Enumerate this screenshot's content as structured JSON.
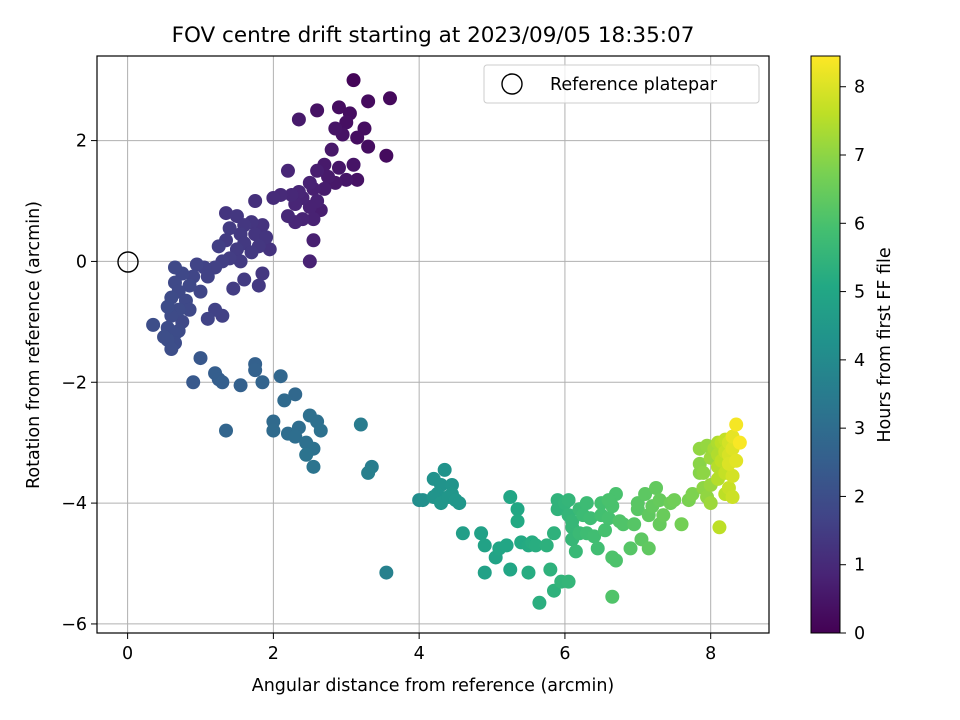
{
  "chart_data": {
    "type": "scatter",
    "title": "FOV centre drift starting at 2023/09/05 18:35:07",
    "xlabel": "Angular distance from reference (arcmin)",
    "ylabel": "Rotation from reference (arcmin)",
    "xlim": [
      -0.42,
      8.8
    ],
    "ylim": [
      -6.15,
      3.4
    ],
    "xticks": [
      0,
      2,
      4,
      6,
      8
    ],
    "yticks": [
      -6,
      -4,
      -2,
      0,
      2
    ],
    "xtick_labels": [
      "0",
      "2",
      "4",
      "6",
      "8"
    ],
    "ytick_labels": [
      "−6",
      "−4",
      "−2",
      "0",
      "2"
    ],
    "grid": true,
    "legend": {
      "position": "top-right",
      "label": "Reference platepar"
    },
    "reference_point": {
      "x": 0,
      "y": 0
    },
    "colorbar": {
      "label": "Hours from first FF file",
      "range": [
        0,
        8.45
      ],
      "ticks": [
        0,
        1,
        2,
        3,
        4,
        5,
        6,
        7,
        8
      ],
      "tick_labels": [
        "0",
        "1",
        "2",
        "3",
        "4",
        "5",
        "6",
        "7",
        "8"
      ],
      "colormap": "viridis"
    },
    "points": [
      [
        3.1,
        3.0,
        0.1
      ],
      [
        3.6,
        2.7,
        0.2
      ],
      [
        3.3,
        2.65,
        0.25
      ],
      [
        2.9,
        2.55,
        0.3
      ],
      [
        3.05,
        2.45,
        0.3
      ],
      [
        2.6,
        2.5,
        0.4
      ],
      [
        2.35,
        2.35,
        0.6
      ],
      [
        3.0,
        2.3,
        0.35
      ],
      [
        3.25,
        2.2,
        0.3
      ],
      [
        2.85,
        2.2,
        0.45
      ],
      [
        3.15,
        2.05,
        0.3
      ],
      [
        2.95,
        2.1,
        0.4
      ],
      [
        3.3,
        1.9,
        0.3
      ],
      [
        2.8,
        1.85,
        0.55
      ],
      [
        3.55,
        1.75,
        0.25
      ],
      [
        2.7,
        1.6,
        0.6
      ],
      [
        2.9,
        1.55,
        0.5
      ],
      [
        3.1,
        1.6,
        0.45
      ],
      [
        2.6,
        1.5,
        0.7
      ],
      [
        2.75,
        1.4,
        0.6
      ],
      [
        3.0,
        1.35,
        0.5
      ],
      [
        3.15,
        1.35,
        0.4
      ],
      [
        2.2,
        1.5,
        0.9
      ],
      [
        2.5,
        1.3,
        0.8
      ],
      [
        2.85,
        1.3,
        0.55
      ],
      [
        2.35,
        1.15,
        0.9
      ],
      [
        2.55,
        1.2,
        0.75
      ],
      [
        2.7,
        1.2,
        0.65
      ],
      [
        2.1,
        1.1,
        1.0
      ],
      [
        2.25,
        1.1,
        0.95
      ],
      [
        2.0,
        1.05,
        1.05
      ],
      [
        2.4,
        1.05,
        0.85
      ],
      [
        2.6,
        1.0,
        0.8
      ],
      [
        1.75,
        1.0,
        1.15
      ],
      [
        2.3,
        0.95,
        0.9
      ],
      [
        2.5,
        0.9,
        0.8
      ],
      [
        2.65,
        0.85,
        0.7
      ],
      [
        2.2,
        0.75,
        0.95
      ],
      [
        2.4,
        0.7,
        0.85
      ],
      [
        2.55,
        0.7,
        0.8
      ],
      [
        2.3,
        0.65,
        0.9
      ],
      [
        2.55,
        0.35,
        0.75
      ],
      [
        2.5,
        0.0,
        0.8
      ],
      [
        1.35,
        0.8,
        1.3
      ],
      [
        1.5,
        0.75,
        1.35
      ],
      [
        1.7,
        0.65,
        1.3
      ],
      [
        1.6,
        0.6,
        1.35
      ],
      [
        1.85,
        0.6,
        1.25
      ],
      [
        1.4,
        0.55,
        1.45
      ],
      [
        1.55,
        0.45,
        1.4
      ],
      [
        1.75,
        0.45,
        1.3
      ],
      [
        1.9,
        0.4,
        1.3
      ],
      [
        1.35,
        0.35,
        1.45
      ],
      [
        1.6,
        0.3,
        1.4
      ],
      [
        1.8,
        0.25,
        1.35
      ],
      [
        1.25,
        0.25,
        1.55
      ],
      [
        1.5,
        0.2,
        1.45
      ],
      [
        1.95,
        0.2,
        1.25
      ],
      [
        1.7,
        0.15,
        1.4
      ],
      [
        1.4,
        0.05,
        1.5
      ],
      [
        1.3,
        0.0,
        1.55
      ],
      [
        1.55,
        0.0,
        1.45
      ],
      [
        1.2,
        -0.1,
        1.6
      ],
      [
        1.05,
        -0.1,
        1.65
      ],
      [
        0.95,
        -0.05,
        1.7
      ],
      [
        1.85,
        -0.2,
        1.35
      ],
      [
        1.6,
        -0.3,
        1.45
      ],
      [
        1.45,
        -0.45,
        1.5
      ],
      [
        1.8,
        -0.4,
        1.4
      ],
      [
        0.65,
        -0.1,
        1.85
      ],
      [
        0.75,
        -0.2,
        1.8
      ],
      [
        0.9,
        -0.25,
        1.75
      ],
      [
        1.1,
        -0.25,
        1.65
      ],
      [
        0.65,
        -0.35,
        1.85
      ],
      [
        0.85,
        -0.4,
        1.8
      ],
      [
        1.0,
        -0.5,
        1.75
      ],
      [
        0.7,
        -0.5,
        1.85
      ],
      [
        0.6,
        -0.6,
        1.9
      ],
      [
        0.8,
        -0.65,
        1.85
      ],
      [
        0.55,
        -0.75,
        1.95
      ],
      [
        0.7,
        -0.8,
        1.9
      ],
      [
        0.85,
        -0.8,
        1.85
      ],
      [
        1.2,
        -0.8,
        1.65
      ],
      [
        1.3,
        -0.9,
        1.6
      ],
      [
        1.1,
        -0.95,
        1.7
      ],
      [
        0.6,
        -0.9,
        1.9
      ],
      [
        0.75,
        -1.0,
        1.85
      ],
      [
        0.35,
        -1.05,
        2.0
      ],
      [
        0.55,
        -1.1,
        1.95
      ],
      [
        0.65,
        -1.2,
        1.95
      ],
      [
        0.55,
        -1.3,
        2.0
      ],
      [
        0.65,
        -1.35,
        1.95
      ],
      [
        0.5,
        -1.25,
        2.0
      ],
      [
        0.7,
        -1.15,
        1.9
      ],
      [
        0.6,
        -1.45,
        2.0
      ],
      [
        1.0,
        -1.6,
        2.3
      ],
      [
        1.2,
        -1.85,
        2.5
      ],
      [
        1.25,
        -1.95,
        2.5
      ],
      [
        0.9,
        -2.0,
        2.35
      ],
      [
        1.3,
        -2.0,
        2.55
      ],
      [
        1.75,
        -1.7,
        2.6
      ],
      [
        1.75,
        -1.8,
        2.65
      ],
      [
        1.85,
        -2.0,
        2.7
      ],
      [
        1.55,
        -2.05,
        2.6
      ],
      [
        2.1,
        -1.9,
        2.8
      ],
      [
        2.3,
        -2.2,
        2.85
      ],
      [
        2.15,
        -2.3,
        2.9
      ],
      [
        1.35,
        -2.8,
        2.75
      ],
      [
        2.0,
        -2.65,
        2.9
      ],
      [
        2.0,
        -2.8,
        2.95
      ],
      [
        2.2,
        -2.85,
        3.0
      ],
      [
        2.3,
        -2.9,
        3.05
      ],
      [
        2.35,
        -2.75,
        3.0
      ],
      [
        2.5,
        -2.55,
        3.1
      ],
      [
        2.6,
        -2.65,
        3.1
      ],
      [
        2.65,
        -2.8,
        3.15
      ],
      [
        2.45,
        -3.0,
        3.1
      ],
      [
        2.55,
        -3.1,
        3.15
      ],
      [
        2.45,
        -3.2,
        3.2
      ],
      [
        2.55,
        -3.4,
        3.25
      ],
      [
        3.2,
        -2.7,
        3.5
      ],
      [
        3.35,
        -3.4,
        3.55
      ],
      [
        3.3,
        -3.5,
        3.6
      ],
      [
        3.55,
        -5.15,
        3.7
      ],
      [
        4.0,
        -3.95,
        4.1
      ],
      [
        4.05,
        -3.95,
        4.15
      ],
      [
        4.2,
        -3.6,
        4.25
      ],
      [
        4.35,
        -3.45,
        4.3
      ],
      [
        4.3,
        -3.7,
        4.3
      ],
      [
        4.25,
        -3.85,
        4.35
      ],
      [
        4.45,
        -3.7,
        4.35
      ],
      [
        4.45,
        -3.85,
        4.4
      ],
      [
        4.5,
        -3.95,
        4.45
      ],
      [
        4.3,
        -4.0,
        4.4
      ],
      [
        4.2,
        -3.9,
        4.35
      ],
      [
        4.4,
        -3.9,
        4.4
      ],
      [
        4.55,
        -4.0,
        4.45
      ],
      [
        4.6,
        -4.5,
        4.7
      ],
      [
        4.85,
        -4.5,
        4.8
      ],
      [
        4.9,
        -4.7,
        4.85
      ],
      [
        4.9,
        -5.15,
        4.8
      ],
      [
        5.05,
        -4.9,
        4.9
      ],
      [
        5.1,
        -4.75,
        4.95
      ],
      [
        5.2,
        -4.7,
        5.0
      ],
      [
        5.25,
        -5.1,
        5.0
      ],
      [
        5.25,
        -3.9,
        5.0
      ],
      [
        5.35,
        -4.1,
        5.05
      ],
      [
        5.35,
        -4.3,
        5.1
      ],
      [
        5.4,
        -4.65,
        5.1
      ],
      [
        5.5,
        -4.7,
        5.15
      ],
      [
        5.55,
        -4.65,
        5.2
      ],
      [
        5.6,
        -4.7,
        5.25
      ],
      [
        5.5,
        -5.15,
        5.2
      ],
      [
        5.65,
        -5.65,
        5.3
      ],
      [
        5.75,
        -4.7,
        5.35
      ],
      [
        5.8,
        -5.1,
        5.4
      ],
      [
        5.85,
        -4.5,
        5.4
      ],
      [
        5.85,
        -5.45,
        5.4
      ],
      [
        5.9,
        -4.1,
        5.45
      ],
      [
        5.9,
        -3.95,
        5.45
      ],
      [
        5.95,
        -5.3,
        5.5
      ],
      [
        6.05,
        -5.3,
        5.55
      ],
      [
        6.0,
        -4.0,
        5.5
      ],
      [
        6.05,
        -3.95,
        5.55
      ],
      [
        6.05,
        -4.2,
        5.55
      ],
      [
        6.1,
        -4.4,
        5.6
      ],
      [
        6.1,
        -4.6,
        5.6
      ],
      [
        6.15,
        -4.8,
        5.65
      ],
      [
        6.1,
        -4.3,
        5.6
      ],
      [
        6.2,
        -4.5,
        5.7
      ],
      [
        6.2,
        -4.1,
        5.7
      ],
      [
        6.25,
        -4.2,
        5.75
      ],
      [
        6.3,
        -4.0,
        5.75
      ],
      [
        6.35,
        -4.25,
        5.8
      ],
      [
        6.3,
        -4.5,
        5.8
      ],
      [
        6.4,
        -4.55,
        5.85
      ],
      [
        6.45,
        -4.75,
        5.85
      ],
      [
        6.5,
        -4.0,
        5.9
      ],
      [
        6.5,
        -4.2,
        5.9
      ],
      [
        6.55,
        -4.45,
        5.95
      ],
      [
        6.6,
        -4.25,
        5.95
      ],
      [
        6.65,
        -4.05,
        6.0
      ],
      [
        6.7,
        -3.85,
        6.0
      ],
      [
        6.6,
        -3.95,
        6.0
      ],
      [
        6.65,
        -4.9,
        6.05
      ],
      [
        6.7,
        -4.95,
        6.05
      ],
      [
        6.75,
        -4.3,
        6.1
      ],
      [
        6.8,
        -4.35,
        6.1
      ],
      [
        6.65,
        -5.55,
        6.1
      ],
      [
        6.9,
        -4.75,
        6.2
      ],
      [
        6.95,
        -4.35,
        6.2
      ],
      [
        7.0,
        -4.1,
        6.25
      ],
      [
        7.0,
        -4.0,
        6.25
      ],
      [
        7.05,
        -4.6,
        6.3
      ],
      [
        7.1,
        -3.85,
        6.3
      ],
      [
        7.15,
        -4.2,
        6.35
      ],
      [
        7.15,
        -4.75,
        6.35
      ],
      [
        7.2,
        -4.05,
        6.4
      ],
      [
        7.25,
        -3.75,
        6.4
      ],
      [
        7.3,
        -3.95,
        6.45
      ],
      [
        7.3,
        -4.35,
        6.45
      ],
      [
        7.35,
        -4.2,
        6.5
      ],
      [
        7.45,
        -4.0,
        6.55
      ],
      [
        7.5,
        -3.95,
        6.6
      ],
      [
        7.6,
        -4.35,
        6.65
      ],
      [
        7.7,
        -3.95,
        6.75
      ],
      [
        7.75,
        -3.85,
        6.8
      ],
      [
        7.85,
        -3.5,
        6.9
      ],
      [
        7.85,
        -3.35,
        6.95
      ],
      [
        7.9,
        -3.5,
        7.0
      ],
      [
        7.85,
        -3.1,
        7.05
      ],
      [
        7.9,
        -3.75,
        7.0
      ],
      [
        7.95,
        -3.9,
        7.05
      ],
      [
        7.95,
        -3.05,
        7.1
      ],
      [
        8.0,
        -3.25,
        7.2
      ],
      [
        8.0,
        -3.7,
        7.15
      ],
      [
        8.0,
        -4.0,
        7.2
      ],
      [
        8.05,
        -3.1,
        7.3
      ],
      [
        8.1,
        -3.0,
        7.4
      ],
      [
        8.1,
        -3.2,
        7.45
      ],
      [
        8.1,
        -3.4,
        7.5
      ],
      [
        8.1,
        -3.6,
        7.5
      ],
      [
        8.15,
        -3.0,
        7.6
      ],
      [
        8.15,
        -3.3,
        7.65
      ],
      [
        8.2,
        -2.95,
        7.7
      ],
      [
        8.2,
        -3.15,
        7.75
      ],
      [
        8.2,
        -3.5,
        7.7
      ],
      [
        8.2,
        -3.85,
        7.6
      ],
      [
        8.12,
        -4.4,
        7.6
      ],
      [
        8.25,
        -3.0,
        7.9
      ],
      [
        8.25,
        -3.2,
        7.95
      ],
      [
        8.25,
        -3.35,
        8.0
      ],
      [
        8.3,
        -3.1,
        8.05
      ],
      [
        8.3,
        -2.9,
        8.15
      ],
      [
        8.3,
        -3.55,
        7.9
      ],
      [
        8.35,
        -2.7,
        8.35
      ],
      [
        8.35,
        -3.3,
        8.1
      ],
      [
        8.4,
        -3.0,
        8.4
      ],
      [
        8.25,
        -3.75,
        7.75
      ],
      [
        8.3,
        -3.9,
        7.8
      ]
    ]
  }
}
